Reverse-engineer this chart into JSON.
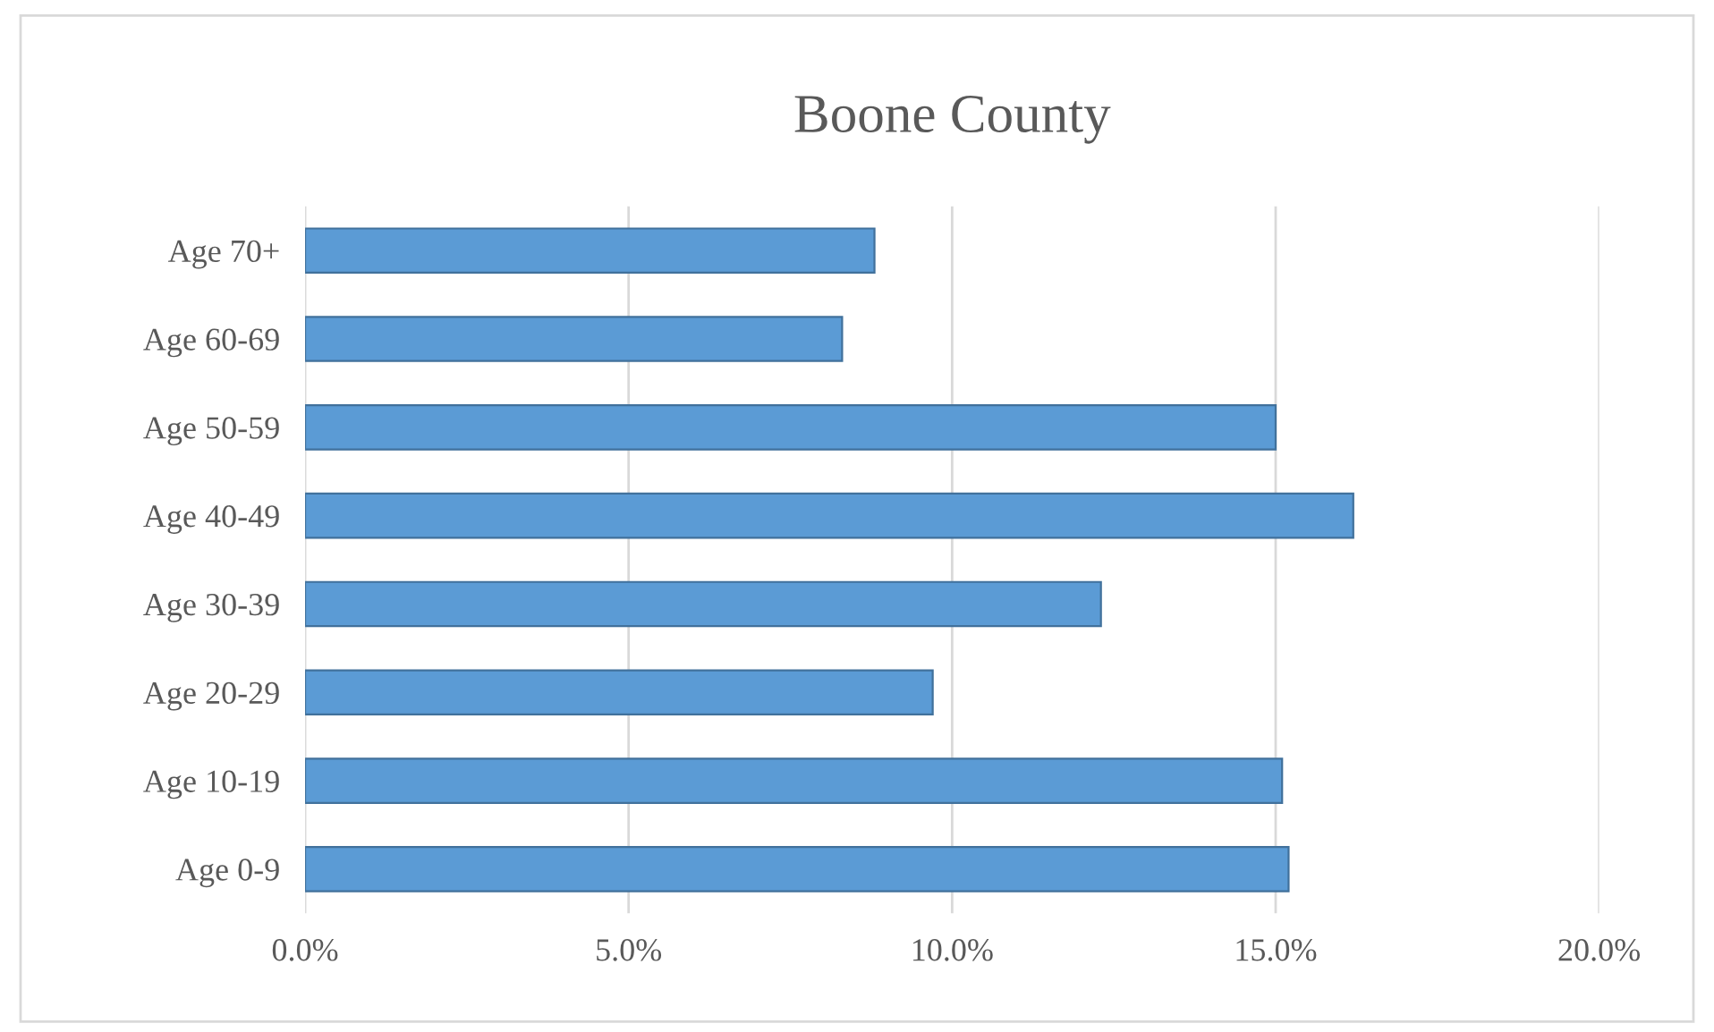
{
  "chart_data": {
    "type": "bar",
    "orientation": "horizontal",
    "title": "Boone County",
    "categories": [
      "Age 70+",
      "Age 60-69",
      "Age 50-59",
      "Age 40-49",
      "Age 30-39",
      "Age 20-29",
      "Age 10-19",
      "Age 0-9"
    ],
    "values": [
      8.8,
      8.3,
      15.0,
      16.2,
      12.3,
      9.7,
      15.1,
      15.2
    ],
    "color": "#5b9bd5",
    "xlim": [
      0,
      20
    ],
    "xticks": [
      {
        "value": 0,
        "label": "0.0%"
      },
      {
        "value": 5,
        "label": "5.0%"
      },
      {
        "value": 10,
        "label": "10.0%"
      },
      {
        "value": 15,
        "label": "15.0%"
      },
      {
        "value": 20,
        "label": "20.0%"
      }
    ],
    "grid": "x"
  }
}
